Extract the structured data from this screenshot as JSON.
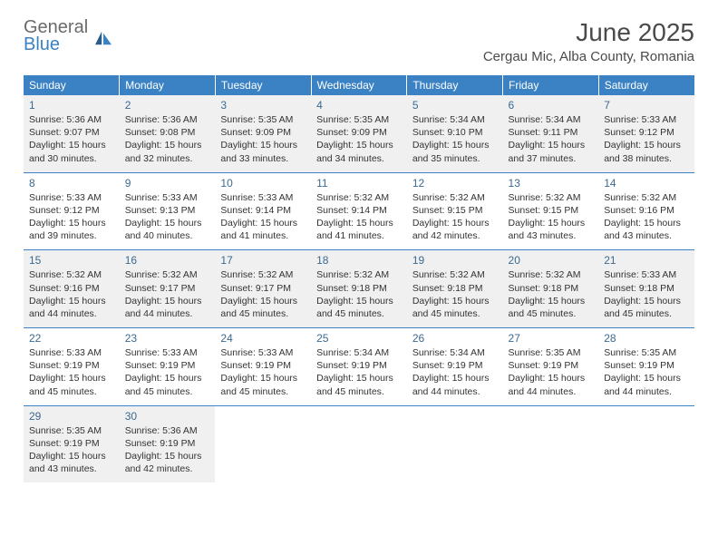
{
  "brand": {
    "general": "General",
    "blue": "Blue"
  },
  "title": "June 2025",
  "location": "Cergau Mic, Alba County, Romania",
  "dow": [
    "Sunday",
    "Monday",
    "Tuesday",
    "Wednesday",
    "Thursday",
    "Friday",
    "Saturday"
  ],
  "colors": {
    "header_bg": "#3b82c4",
    "header_text": "#ffffff",
    "shade_bg": "#f0f0f0",
    "daynum_color": "#3b6a91",
    "rule_color": "#3b82c4"
  },
  "weeks": [
    {
      "shaded": true,
      "days": [
        {
          "n": "1",
          "sr": "5:36 AM",
          "ss": "9:07 PM",
          "dh": "15",
          "dm": "30"
        },
        {
          "n": "2",
          "sr": "5:36 AM",
          "ss": "9:08 PM",
          "dh": "15",
          "dm": "32"
        },
        {
          "n": "3",
          "sr": "5:35 AM",
          "ss": "9:09 PM",
          "dh": "15",
          "dm": "33"
        },
        {
          "n": "4",
          "sr": "5:35 AM",
          "ss": "9:09 PM",
          "dh": "15",
          "dm": "34"
        },
        {
          "n": "5",
          "sr": "5:34 AM",
          "ss": "9:10 PM",
          "dh": "15",
          "dm": "35"
        },
        {
          "n": "6",
          "sr": "5:34 AM",
          "ss": "9:11 PM",
          "dh": "15",
          "dm": "37"
        },
        {
          "n": "7",
          "sr": "5:33 AM",
          "ss": "9:12 PM",
          "dh": "15",
          "dm": "38"
        }
      ]
    },
    {
      "shaded": false,
      "days": [
        {
          "n": "8",
          "sr": "5:33 AM",
          "ss": "9:12 PM",
          "dh": "15",
          "dm": "39"
        },
        {
          "n": "9",
          "sr": "5:33 AM",
          "ss": "9:13 PM",
          "dh": "15",
          "dm": "40"
        },
        {
          "n": "10",
          "sr": "5:33 AM",
          "ss": "9:14 PM",
          "dh": "15",
          "dm": "41"
        },
        {
          "n": "11",
          "sr": "5:32 AM",
          "ss": "9:14 PM",
          "dh": "15",
          "dm": "41"
        },
        {
          "n": "12",
          "sr": "5:32 AM",
          "ss": "9:15 PM",
          "dh": "15",
          "dm": "42"
        },
        {
          "n": "13",
          "sr": "5:32 AM",
          "ss": "9:15 PM",
          "dh": "15",
          "dm": "43"
        },
        {
          "n": "14",
          "sr": "5:32 AM",
          "ss": "9:16 PM",
          "dh": "15",
          "dm": "43"
        }
      ]
    },
    {
      "shaded": true,
      "days": [
        {
          "n": "15",
          "sr": "5:32 AM",
          "ss": "9:16 PM",
          "dh": "15",
          "dm": "44"
        },
        {
          "n": "16",
          "sr": "5:32 AM",
          "ss": "9:17 PM",
          "dh": "15",
          "dm": "44"
        },
        {
          "n": "17",
          "sr": "5:32 AM",
          "ss": "9:17 PM",
          "dh": "15",
          "dm": "45"
        },
        {
          "n": "18",
          "sr": "5:32 AM",
          "ss": "9:18 PM",
          "dh": "15",
          "dm": "45"
        },
        {
          "n": "19",
          "sr": "5:32 AM",
          "ss": "9:18 PM",
          "dh": "15",
          "dm": "45"
        },
        {
          "n": "20",
          "sr": "5:32 AM",
          "ss": "9:18 PM",
          "dh": "15",
          "dm": "45"
        },
        {
          "n": "21",
          "sr": "5:33 AM",
          "ss": "9:18 PM",
          "dh": "15",
          "dm": "45"
        }
      ]
    },
    {
      "shaded": false,
      "days": [
        {
          "n": "22",
          "sr": "5:33 AM",
          "ss": "9:19 PM",
          "dh": "15",
          "dm": "45"
        },
        {
          "n": "23",
          "sr": "5:33 AM",
          "ss": "9:19 PM",
          "dh": "15",
          "dm": "45"
        },
        {
          "n": "24",
          "sr": "5:33 AM",
          "ss": "9:19 PM",
          "dh": "15",
          "dm": "45"
        },
        {
          "n": "25",
          "sr": "5:34 AM",
          "ss": "9:19 PM",
          "dh": "15",
          "dm": "45"
        },
        {
          "n": "26",
          "sr": "5:34 AM",
          "ss": "9:19 PM",
          "dh": "15",
          "dm": "44"
        },
        {
          "n": "27",
          "sr": "5:35 AM",
          "ss": "9:19 PM",
          "dh": "15",
          "dm": "44"
        },
        {
          "n": "28",
          "sr": "5:35 AM",
          "ss": "9:19 PM",
          "dh": "15",
          "dm": "44"
        }
      ]
    },
    {
      "shaded": true,
      "days": [
        {
          "n": "29",
          "sr": "5:35 AM",
          "ss": "9:19 PM",
          "dh": "15",
          "dm": "43"
        },
        {
          "n": "30",
          "sr": "5:36 AM",
          "ss": "9:19 PM",
          "dh": "15",
          "dm": "42"
        },
        null,
        null,
        null,
        null,
        null
      ]
    }
  ],
  "labels": {
    "sunrise": "Sunrise: ",
    "sunset": "Sunset: ",
    "daylight_prefix": "Daylight: ",
    "hours": " hours",
    "and": "and ",
    "minutes": " minutes."
  }
}
